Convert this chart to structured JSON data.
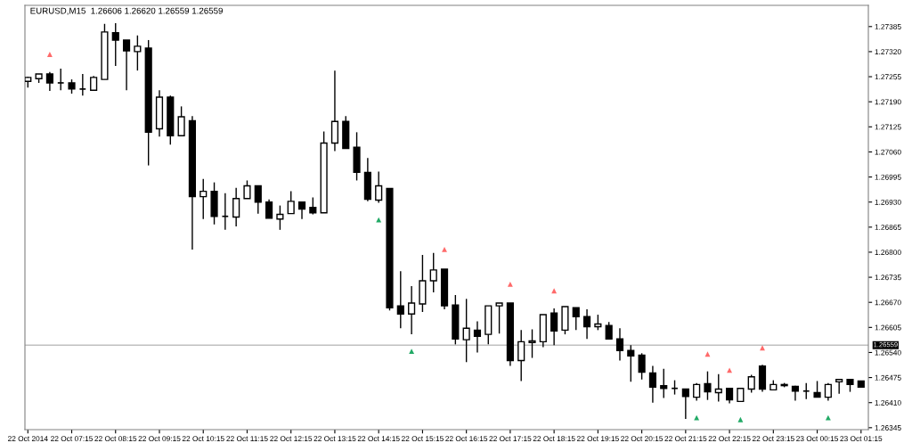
{
  "chart_data": {
    "type": "candlestick",
    "title": "EURUSD,M15  1.26606 1.26620 1.26559 1.26559",
    "color": "#000000",
    "x": [
      "2014-10-22T06:15",
      "2014-10-22T06:30",
      "2014-10-22T06:45",
      "2014-10-22T07:00",
      "2014-10-22T07:15",
      "2014-10-22T07:30",
      "2014-10-22T07:45",
      "2014-10-22T08:00",
      "2014-10-22T08:15",
      "2014-10-22T08:30",
      "2014-10-22T08:45",
      "2014-10-22T09:00",
      "2014-10-22T09:15",
      "2014-10-22T09:30",
      "2014-10-22T09:45",
      "2014-10-22T10:00",
      "2014-10-22T10:15",
      "2014-10-22T10:30",
      "2014-10-22T10:45",
      "2014-10-22T11:00",
      "2014-10-22T11:15",
      "2014-10-22T11:30",
      "2014-10-22T11:45",
      "2014-10-22T12:00",
      "2014-10-22T12:15",
      "2014-10-22T12:30",
      "2014-10-22T12:45",
      "2014-10-22T13:00",
      "2014-10-22T13:15",
      "2014-10-22T13:30",
      "2014-10-22T13:45",
      "2014-10-22T14:00",
      "2014-10-22T14:15",
      "2014-10-22T14:30",
      "2014-10-22T14:45",
      "2014-10-22T15:00",
      "2014-10-22T15:15",
      "2014-10-22T15:30",
      "2014-10-22T15:45",
      "2014-10-22T16:00",
      "2014-10-22T16:15",
      "2014-10-22T16:30",
      "2014-10-22T16:45",
      "2014-10-22T17:00",
      "2014-10-22T17:15",
      "2014-10-22T17:30",
      "2014-10-22T17:45",
      "2014-10-22T18:00",
      "2014-10-22T18:15",
      "2014-10-22T18:30",
      "2014-10-22T18:45",
      "2014-10-22T19:00",
      "2014-10-22T19:15",
      "2014-10-22T19:30",
      "2014-10-22T19:45",
      "2014-10-22T20:00",
      "2014-10-22T20:15",
      "2014-10-22T20:30",
      "2014-10-22T20:45",
      "2014-10-22T21:00",
      "2014-10-22T21:15",
      "2014-10-22T21:30",
      "2014-10-22T21:45",
      "2014-10-22T22:00",
      "2014-10-22T22:15",
      "2014-10-22T22:30",
      "2014-10-22T22:45",
      "2014-10-22T23:00",
      "2014-10-22T23:15",
      "2014-10-22T23:30",
      "2014-10-22T23:45",
      "2014-10-23T00:00",
      "2014-10-23T00:15",
      "2014-10-23T00:30",
      "2014-10-23T00:45",
      "2014-10-23T01:00",
      "2014-10-23T01:15"
    ],
    "ohlc": [
      [
        1.27243,
        1.27255,
        1.27227,
        1.27253
      ],
      [
        1.2725,
        1.27262,
        1.27239,
        1.27262
      ],
      [
        1.27262,
        1.27267,
        1.27218,
        1.27239
      ],
      [
        1.27239,
        1.27276,
        1.2722,
        1.27239
      ],
      [
        1.27239,
        1.27248,
        1.27211,
        1.27223
      ],
      [
        1.27223,
        1.27262,
        1.27206,
        1.27223
      ],
      [
        1.2722,
        1.27257,
        1.2722,
        1.27253
      ],
      [
        1.27248,
        1.27392,
        1.27248,
        1.27371
      ],
      [
        1.27369,
        1.27394,
        1.27283,
        1.2735
      ],
      [
        1.2735,
        1.2735,
        1.2722,
        1.27322
      ],
      [
        1.2732,
        1.27362,
        1.27271,
        1.27334
      ],
      [
        1.27329,
        1.2735,
        1.27025,
        1.27111
      ],
      [
        1.2712,
        1.2722,
        1.271,
        1.27202
      ],
      [
        1.27202,
        1.27206,
        1.27079,
        1.27102
      ],
      [
        1.27102,
        1.27178,
        1.27102,
        1.27151
      ],
      [
        1.27141,
        1.27153,
        1.26807,
        1.26944
      ],
      [
        1.26944,
        1.2699,
        1.26886,
        1.26958
      ],
      [
        1.26958,
        1.26981,
        1.26872,
        1.26893
      ],
      [
        1.26893,
        1.26953,
        1.26858,
        1.26893
      ],
      [
        1.26891,
        1.26967,
        1.26867,
        1.26939
      ],
      [
        1.26939,
        1.26986,
        1.26939,
        1.26972
      ],
      [
        1.26972,
        1.26972,
        1.269,
        1.2693
      ],
      [
        1.2693,
        1.26937,
        1.26888,
        1.26888
      ],
      [
        1.26886,
        1.26921,
        1.26858,
        1.26898
      ],
      [
        1.269,
        1.26958,
        1.269,
        1.26932
      ],
      [
        1.2693,
        1.2693,
        1.26886,
        1.26912
      ],
      [
        1.26916,
        1.26942,
        1.26898,
        1.26902
      ],
      [
        1.26902,
        1.27113,
        1.26902,
        1.27083
      ],
      [
        1.27083,
        1.27271,
        1.27062,
        1.27139
      ],
      [
        1.27139,
        1.27153,
        1.27069,
        1.27069
      ],
      [
        1.27072,
        1.27111,
        1.26986,
        1.27007
      ],
      [
        1.27007,
        1.27044,
        1.26932,
        1.26937
      ],
      [
        1.26935,
        1.27009,
        1.26928,
        1.26972
      ],
      [
        1.26965,
        1.26965,
        1.26649,
        1.26656
      ],
      [
        1.26661,
        1.26751,
        1.26603,
        1.2664
      ],
      [
        1.2664,
        1.26712,
        1.26587,
        1.26668
      ],
      [
        1.26666,
        1.26793,
        1.26645,
        1.26726
      ],
      [
        1.26726,
        1.26798,
        1.26696,
        1.26754
      ],
      [
        1.26756,
        1.26756,
        1.26652,
        1.26661
      ],
      [
        1.26663,
        1.26689,
        1.26561,
        1.26575
      ],
      [
        1.26573,
        1.26679,
        1.26515,
        1.26603
      ],
      [
        1.26598,
        1.26621,
        1.2654,
        1.26582
      ],
      [
        1.26587,
        1.26661,
        1.26561,
        1.26661
      ],
      [
        1.26661,
        1.26668,
        1.26589,
        1.26668
      ],
      [
        1.26668,
        1.26668,
        1.26505,
        1.26519
      ],
      [
        1.26519,
        1.26598,
        1.26466,
        1.26568
      ],
      [
        1.26566,
        1.266,
        1.26526,
        1.2657
      ],
      [
        1.26568,
        1.26638,
        1.26554,
        1.26638
      ],
      [
        1.26642,
        1.26654,
        1.26559,
        1.26596
      ],
      [
        1.26598,
        1.26659,
        1.26587,
        1.26659
      ],
      [
        1.26656,
        1.26656,
        1.26598,
        1.26633
      ],
      [
        1.26633,
        1.26652,
        1.26575,
        1.26607
      ],
      [
        1.26607,
        1.26638,
        1.26598,
        1.26614
      ],
      [
        1.2661,
        1.26619,
        1.26575,
        1.26575
      ],
      [
        1.26575,
        1.26603,
        1.26519,
        1.26545
      ],
      [
        1.26545,
        1.26559,
        1.26464,
        1.26531
      ],
      [
        1.26533,
        1.26538,
        1.2647,
        1.26489
      ],
      [
        1.26487,
        1.26505,
        1.2641,
        1.2645
      ],
      [
        1.26454,
        1.26498,
        1.26422,
        1.26447
      ],
      [
        1.26447,
        1.26468,
        1.26431,
        1.26447
      ],
      [
        1.26445,
        1.26445,
        1.26368,
        1.26426
      ],
      [
        1.26424,
        1.26461,
        1.26415,
        1.26457
      ],
      [
        1.26459,
        1.26491,
        1.26417,
        1.26438
      ],
      [
        1.26436,
        1.26484,
        1.26413,
        1.26445
      ],
      [
        1.26447,
        1.26447,
        1.26408,
        1.26417
      ],
      [
        1.26413,
        1.26447,
        1.26413,
        1.26447
      ],
      [
        1.26445,
        1.26482,
        1.26436,
        1.26477
      ],
      [
        1.26505,
        1.26508,
        1.26438,
        1.26445
      ],
      [
        1.26443,
        1.26468,
        1.26443,
        1.26457
      ],
      [
        1.26457,
        1.26461,
        1.2645,
        1.26454
      ],
      [
        1.26452,
        1.26454,
        1.26415,
        1.2644
      ],
      [
        1.2644,
        1.26461,
        1.26419,
        1.2644
      ],
      [
        1.26436,
        1.26466,
        1.26424,
        1.26424
      ],
      [
        1.26424,
        1.26461,
        1.26415,
        1.26457
      ],
      [
        1.26464,
        1.2647,
        1.26433,
        1.2647
      ],
      [
        1.2647,
        1.2647,
        1.26438,
        1.26457
      ],
      [
        1.26466,
        1.26466,
        1.2645,
        1.2645
      ]
    ],
    "series": [
      {
        "type": "scatter",
        "color": "#ff6a6a",
        "marker": "triangle",
        "x": [
          "2014-10-22T06:45",
          "2014-10-22T15:45",
          "2014-10-22T17:15",
          "2014-10-22T18:15",
          "2014-10-22T21:45",
          "2014-10-22T22:15",
          "2014-10-22T23:00"
        ],
        "values": [
          1.27313,
          1.26807,
          1.26717,
          1.267,
          1.26536,
          1.26494,
          1.26552
        ]
      },
      {
        "type": "scatter",
        "color": "#22aa66",
        "marker": "triangle",
        "x": [
          "2014-10-22T14:15",
          "2014-10-22T15:00",
          "2014-10-22T21:30",
          "2014-10-22T22:30",
          "2014-10-23T00:30"
        ],
        "values": [
          1.26884,
          1.26543,
          1.26371,
          1.26366,
          1.26371
        ]
      }
    ],
    "ref_lines": [
      {
        "axis": "y",
        "value": 1.26559,
        "label": "1.26559",
        "color": "#c0c0c0"
      }
    ],
    "xlim": [
      "2014-10-22T06:11",
      "2014-10-23T01:25"
    ],
    "xticks": [
      {
        "value": "2014-10-22T06:15",
        "label": "22 Oct 2014"
      },
      {
        "value": "2014-10-22T07:15",
        "label": "22 Oct 07:15"
      },
      {
        "value": "2014-10-22T08:15",
        "label": "22 Oct 08:15"
      },
      {
        "value": "2014-10-22T09:15",
        "label": "22 Oct 09:15"
      },
      {
        "value": "2014-10-22T10:15",
        "label": "22 Oct 10:15"
      },
      {
        "value": "2014-10-22T11:15",
        "label": "22 Oct 11:15"
      },
      {
        "value": "2014-10-22T12:15",
        "label": "22 Oct 12:15"
      },
      {
        "value": "2014-10-22T13:15",
        "label": "22 Oct 13:15"
      },
      {
        "value": "2014-10-22T14:15",
        "label": "22 Oct 14:15"
      },
      {
        "value": "2014-10-22T15:15",
        "label": "22 Oct 15:15"
      },
      {
        "value": "2014-10-22T16:15",
        "label": "22 Oct 16:15"
      },
      {
        "value": "2014-10-22T17:15",
        "label": "22 Oct 17:15"
      },
      {
        "value": "2014-10-22T18:15",
        "label": "22 Oct 18:15"
      },
      {
        "value": "2014-10-22T19:15",
        "label": "22 Oct 19:15"
      },
      {
        "value": "2014-10-22T20:15",
        "label": "22 Oct 20:15"
      },
      {
        "value": "2014-10-22T21:15",
        "label": "22 Oct 21:15"
      },
      {
        "value": "2014-10-22T22:15",
        "label": "22 Oct 22:15"
      },
      {
        "value": "2014-10-22T23:15",
        "label": "22 Oct 23:15"
      },
      {
        "value": "2014-10-23T00:15",
        "label": "23 Oct 00:15"
      },
      {
        "value": "2014-10-23T01:15",
        "label": "23 Oct 01:15"
      }
    ],
    "ylim": [
      1.2634,
      1.2744
    ],
    "yticks": [
      1.27385,
      {
        "value": 1.2732,
        "label": "1.27320"
      },
      1.27255,
      {
        "value": 1.2719,
        "label": "1.27190"
      },
      1.27125,
      {
        "value": 1.2706,
        "label": "1.27060"
      },
      1.26995,
      {
        "value": 1.2693,
        "label": "1.26930"
      },
      1.26865,
      {
        "value": 1.268,
        "label": "1.26800"
      },
      1.26735,
      {
        "value": 1.2667,
        "label": "1.26670"
      },
      1.26605,
      {
        "value": 1.2654,
        "label": "1.26540"
      },
      1.26475,
      {
        "value": 1.2641,
        "label": "1.26410"
      },
      1.26345
    ],
    "grid": false
  }
}
